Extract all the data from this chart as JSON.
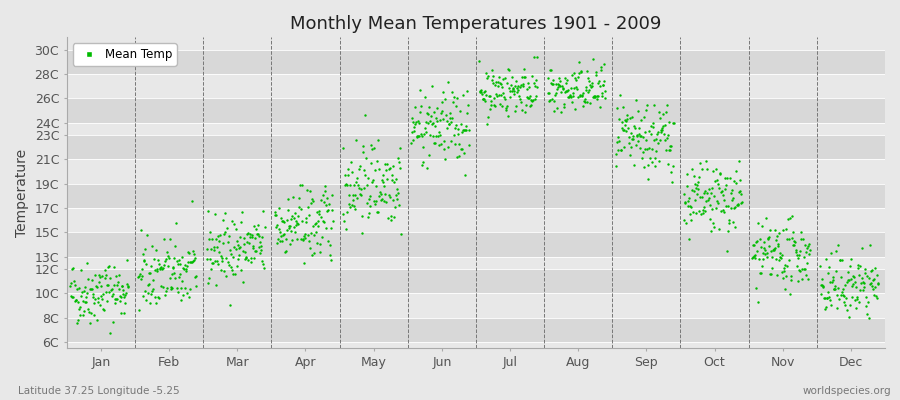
{
  "title": "Monthly Mean Temperatures 1901 - 2009",
  "ylabel": "Temperature",
  "xlabel": "",
  "subtitle_left": "Latitude 37.25 Longitude -5.25",
  "subtitle_right": "worldspecies.org",
  "ytick_labels": [
    "6C",
    "8C",
    "10C",
    "12C",
    "13C",
    "15C",
    "17C",
    "19C",
    "21C",
    "23C",
    "24C",
    "26C",
    "28C",
    "30C"
  ],
  "ytick_values": [
    6,
    8,
    10,
    12,
    13,
    15,
    17,
    19,
    21,
    23,
    24,
    26,
    28,
    30
  ],
  "ylim": [
    5.5,
    31
  ],
  "months": [
    "Jan",
    "Feb",
    "Mar",
    "Apr",
    "May",
    "Jun",
    "Jul",
    "Aug",
    "Sep",
    "Oct",
    "Nov",
    "Dec"
  ],
  "month_positions": [
    0,
    1,
    2,
    3,
    4,
    5,
    6,
    7,
    8,
    9,
    10,
    11
  ],
  "mean_temps": [
    10.0,
    11.5,
    13.5,
    15.5,
    19.0,
    23.5,
    26.5,
    26.5,
    22.5,
    17.5,
    13.0,
    10.5
  ],
  "temp_spreads": [
    1.3,
    1.5,
    1.4,
    1.5,
    1.8,
    1.5,
    1.0,
    1.0,
    1.5,
    1.5,
    1.3,
    1.3
  ],
  "dot_color": "#00BB00",
  "legend_label": "Mean Temp",
  "background_color": "#e8e8e8",
  "plot_background_light": "#e8e8e8",
  "plot_background_dark": "#d8d8d8",
  "n_years": 109,
  "seed": 42,
  "title_fontsize": 13,
  "axis_fontsize": 9,
  "dot_size": 3
}
